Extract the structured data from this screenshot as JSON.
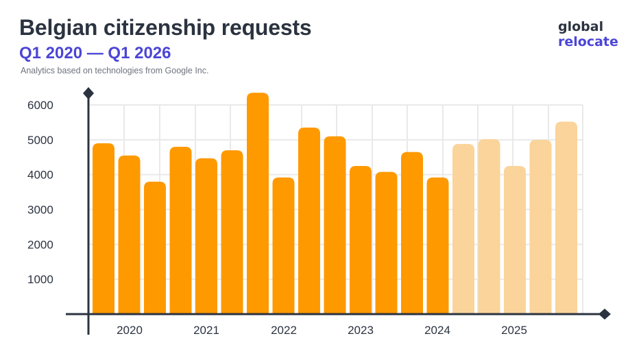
{
  "header": {
    "title": "Belgian citizenship requests",
    "subtitle": "Q1 2020 — Q1 2026",
    "note": "Analytics based on technologies from Google Inc."
  },
  "logo": {
    "line1": "global",
    "line2": "relocate"
  },
  "colors": {
    "actual": "#ff9900",
    "forecast": "#fad49a",
    "axis": "#2b3340",
    "grid": "#e9e9e9"
  },
  "chart_data": {
    "type": "bar",
    "x_tick_labels": [
      "2020",
      "2021",
      "2022",
      "2023",
      "2024",
      "2025"
    ],
    "y_ticks": [
      1000,
      2000,
      3000,
      4000,
      5000,
      6000
    ],
    "ylim": [
      0,
      6400
    ],
    "grid": true,
    "series": [
      {
        "values": [
          4900,
          4550,
          3800,
          4800,
          4470,
          4700,
          6350,
          3920,
          5350,
          5100,
          4250,
          4080,
          4650,
          3920
        ],
        "style": "actual"
      },
      {
        "values": [
          4880,
          5020,
          4250,
          5000,
          5520
        ],
        "style": "forecast"
      }
    ]
  }
}
